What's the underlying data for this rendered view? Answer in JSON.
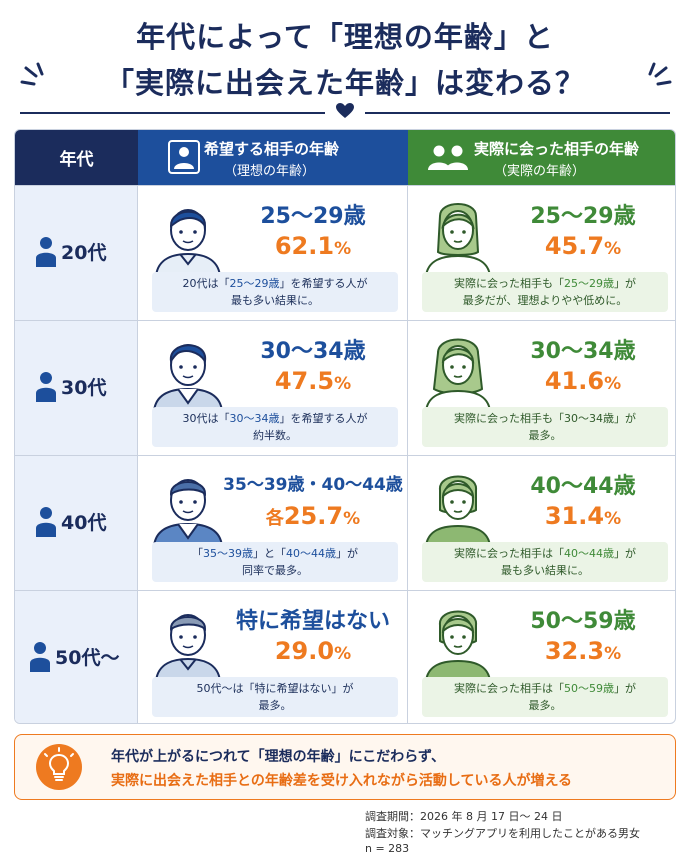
{
  "title": {
    "line1": "年代によって「理想の年齢」と",
    "line2": "「実際に出会えた年齢」は変わる？"
  },
  "table_header": {
    "age": "年代",
    "ideal_main": "希望する相手の年齢",
    "ideal_sub": "（理想の年齢）",
    "real_main": "実際に会った相手の年齢",
    "real_sub": "（実際の年齢）"
  },
  "rows": [
    {
      "age": "20代",
      "ideal": {
        "range": "25～29歳",
        "pct": "62.1",
        "unit": "%",
        "note_l1_pre": "20代は「",
        "note_l1_hl": "25～29歳",
        "note_l1_post": "」を希望する人が",
        "note_l2": "最も多い結果に。"
      },
      "real": {
        "range": "25～29歳",
        "pct": "45.7",
        "unit": "%",
        "note_l1_pre": "実際に会った相手も「",
        "note_l1_hl": "25～29歳",
        "note_l1_post": "」が",
        "note_l2": "最多だが、理想よりやや低めに。"
      }
    },
    {
      "age": "30代",
      "ideal": {
        "range": "30～34歳",
        "pct": "47.5",
        "unit": "%",
        "note_l1_pre": "30代は「",
        "note_l1_hl": "30～34歳",
        "note_l1_post": "」を希望する人が",
        "note_l2": "約半数。"
      },
      "real": {
        "range": "30～34歳",
        "pct": "41.6",
        "unit": "%",
        "note_l1_pre": "実際に会った相手も「",
        "note_l1_hl": "30～34歳",
        "note_l1_post": "」が",
        "note_l2": "最多。"
      }
    },
    {
      "age": "40代",
      "ideal": {
        "range": "35～39歳・40～44歳",
        "prefix": "各",
        "pct": "25.7",
        "unit": "%",
        "note_l1_pre": "「",
        "note_l1_hl": "35～39歳",
        "note_l1_mid": "」と「",
        "note_l1_hl2": "40～44歳",
        "note_l1_post": "」が",
        "note_l2": "同率で最多。"
      },
      "real": {
        "range": "40～44歳",
        "pct": "31.4",
        "unit": "%",
        "note_l1_pre": "実際に会った相手は「",
        "note_l1_hl": "40～44歳",
        "note_l1_post": "」が",
        "note_l2": "最も多い結果に。"
      }
    },
    {
      "age": "50代～",
      "ideal": {
        "range": "特に希望はない",
        "pct": "29.0",
        "unit": "%",
        "note_l1_pre": "50代～は「特に希望はない」が",
        "note_l2": "最多。"
      },
      "real": {
        "range": "50～59歳",
        "pct": "32.3",
        "unit": "%",
        "note_l1_pre": "実際に会った相手は「",
        "note_l1_hl": "50～59歳",
        "note_l1_post": "」が",
        "note_l2": "最多。"
      }
    }
  ],
  "callout": {
    "line1": "年代が上がるにつれて「理想の年齢」にこだわらず、",
    "line2": "実際に出会えた相手との年齢差を受け入れながら活動している人が増える"
  },
  "survey": {
    "period": "調査期間：2026 年 8 月 17 日～ 24 日",
    "target": "調査対象：マッチングアプリを利用したことがある男女",
    "n": "n = 283"
  },
  "colors": {
    "navy": "#1b2c5c",
    "blue": "#1d4f9c",
    "green": "#3f8a38",
    "orange": "#ee7a20"
  },
  "icons": [
    "person-icon",
    "two-people-icon",
    "man-avatar-icon",
    "woman-avatar-icon",
    "lightbulb-icon",
    "heart-icon"
  ]
}
